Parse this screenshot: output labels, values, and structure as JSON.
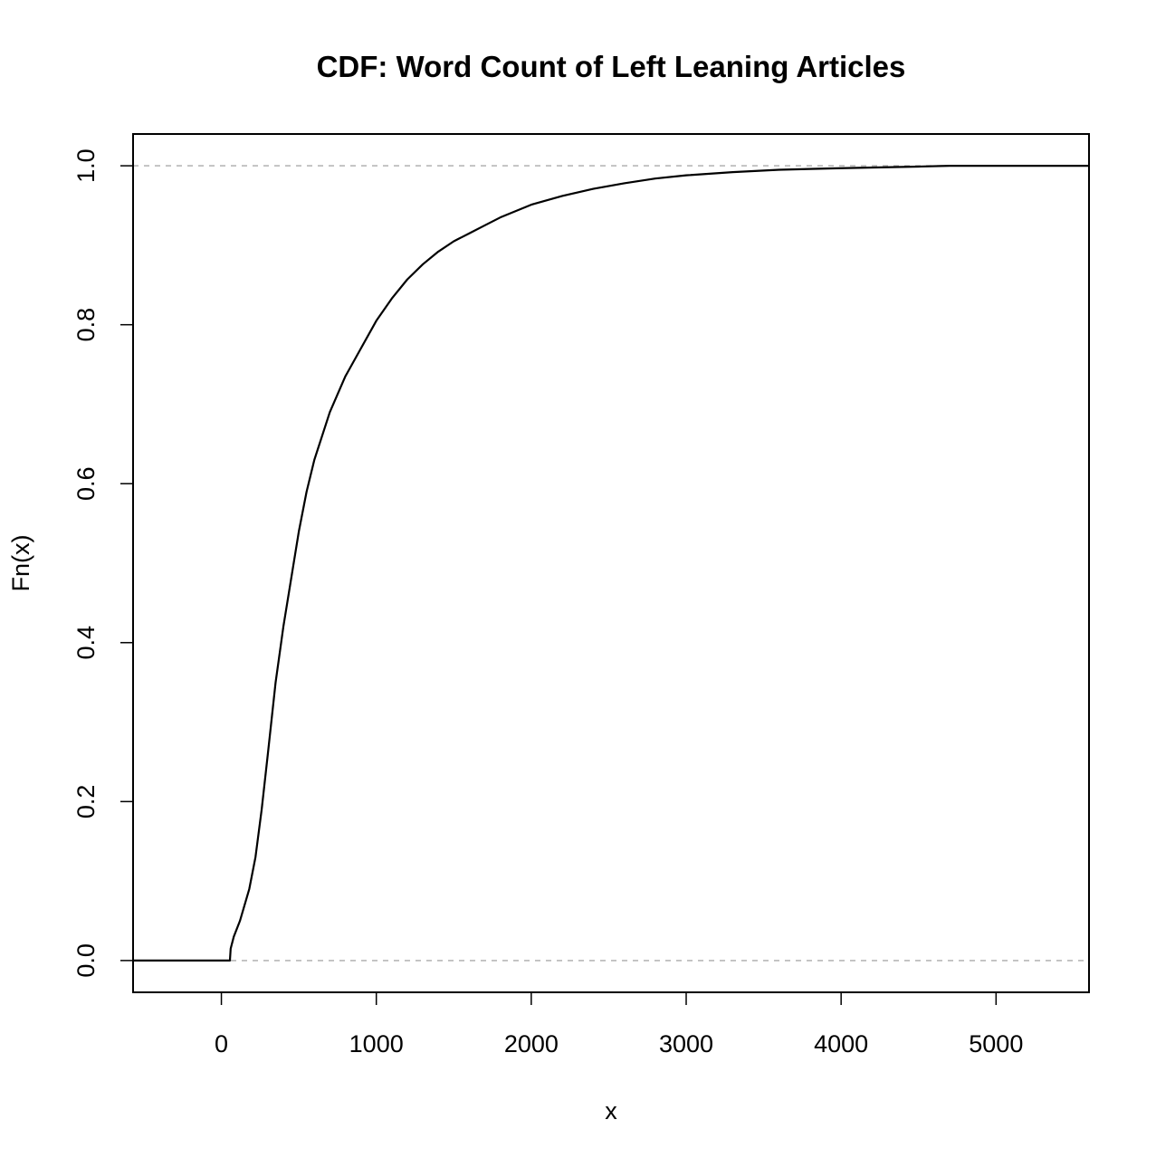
{
  "chart_data": {
    "type": "line",
    "title": "CDF: Word Count of Left Leaning Articles",
    "xlabel": "x",
    "ylabel": "Fn(x)",
    "xlim": [
      -570,
      5600
    ],
    "ylim": [
      -0.04,
      1.04
    ],
    "x_ticks": [
      0,
      1000,
      2000,
      3000,
      4000,
      5000
    ],
    "x_tick_labels": [
      "0",
      "1000",
      "2000",
      "3000",
      "4000",
      "5000"
    ],
    "y_ticks": [
      0.0,
      0.2,
      0.4,
      0.6,
      0.8,
      1.0
    ],
    "y_tick_labels": [
      "0.0",
      "0.2",
      "0.4",
      "0.6",
      "0.8",
      "1.0"
    ],
    "reference_lines": [
      0.0,
      1.0
    ],
    "grid": false,
    "legend": "none",
    "series": [
      {
        "points": [
          [
            -570,
            0.0
          ],
          [
            55,
            0.0
          ],
          [
            60,
            0.015
          ],
          [
            80,
            0.03
          ],
          [
            120,
            0.05
          ],
          [
            180,
            0.09
          ],
          [
            220,
            0.13
          ],
          [
            260,
            0.19
          ],
          [
            300,
            0.26
          ],
          [
            350,
            0.35
          ],
          [
            400,
            0.42
          ],
          [
            450,
            0.48
          ],
          [
            500,
            0.54
          ],
          [
            550,
            0.59
          ],
          [
            600,
            0.63
          ],
          [
            700,
            0.69
          ],
          [
            800,
            0.735
          ],
          [
            900,
            0.77
          ],
          [
            1000,
            0.805
          ],
          [
            1100,
            0.833
          ],
          [
            1200,
            0.857
          ],
          [
            1300,
            0.876
          ],
          [
            1400,
            0.892
          ],
          [
            1500,
            0.905
          ],
          [
            1600,
            0.915
          ],
          [
            1700,
            0.925
          ],
          [
            1800,
            0.935
          ],
          [
            1900,
            0.943
          ],
          [
            2000,
            0.951
          ],
          [
            2200,
            0.962
          ],
          [
            2400,
            0.971
          ],
          [
            2600,
            0.978
          ],
          [
            2800,
            0.984
          ],
          [
            3000,
            0.988
          ],
          [
            3300,
            0.992
          ],
          [
            3600,
            0.995
          ],
          [
            4000,
            0.997
          ],
          [
            4500,
            0.999
          ],
          [
            4700,
            1.0
          ],
          [
            5600,
            1.0
          ]
        ]
      }
    ]
  }
}
